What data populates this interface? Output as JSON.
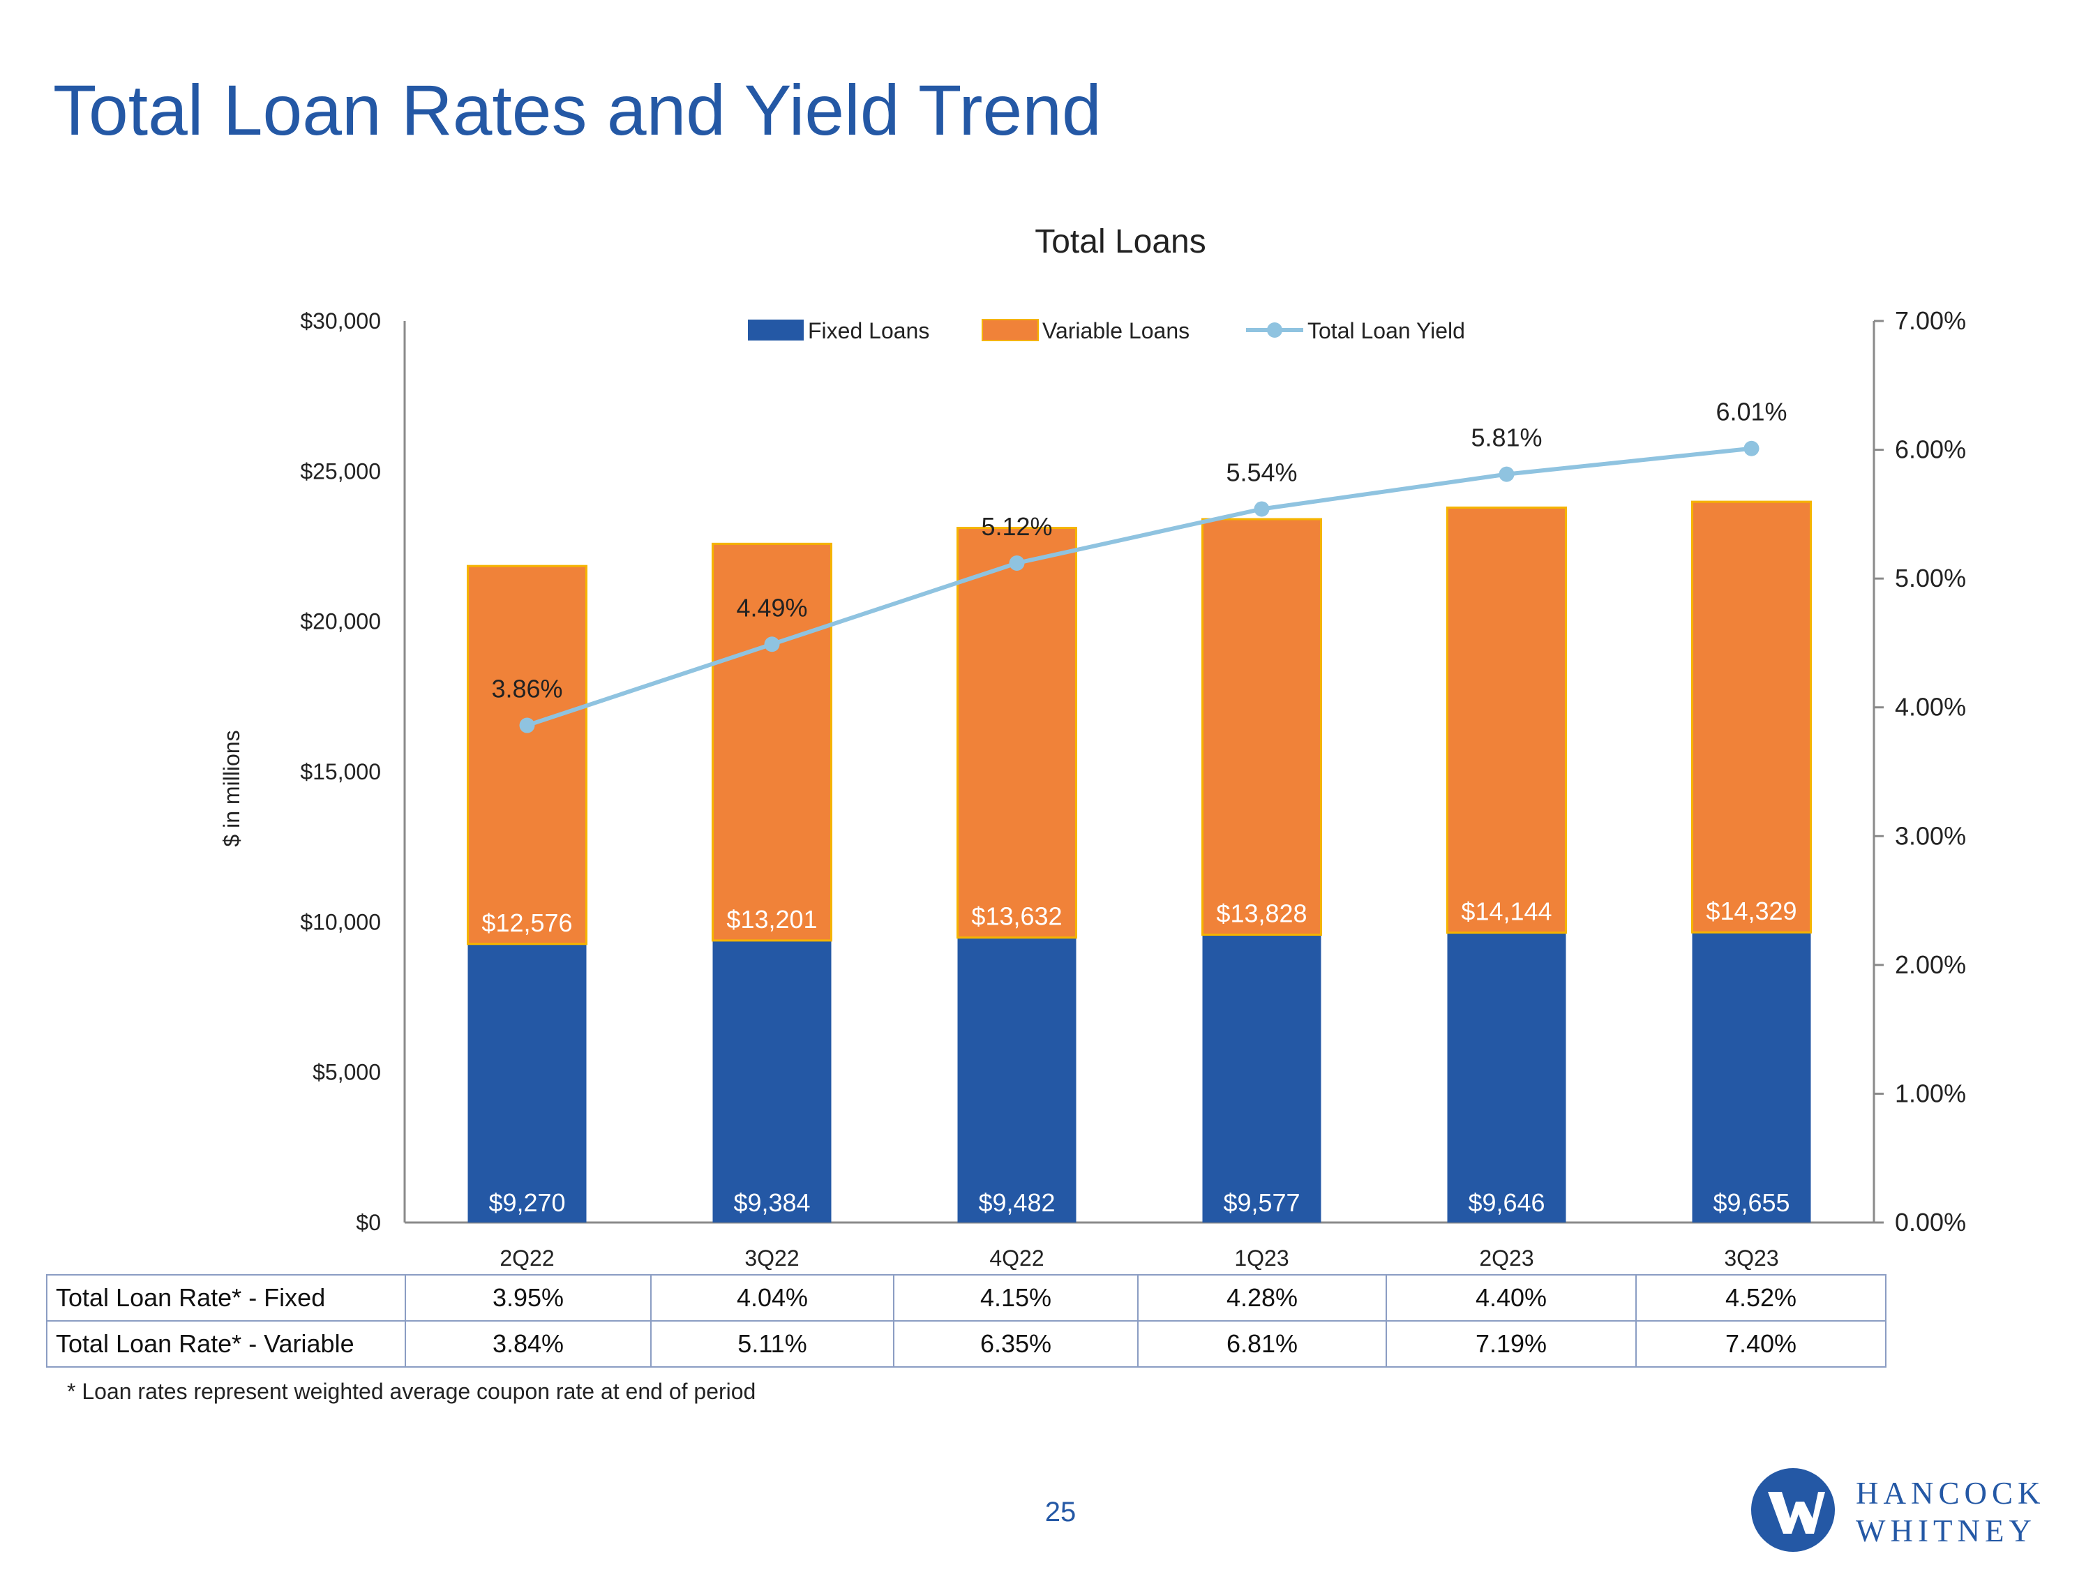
{
  "page": {
    "title": "Total Loan Rates and Yield Trend",
    "footnote": "* Loan rates represent weighted average coupon rate at end of period",
    "page_number": "25",
    "logo": {
      "line1": "HANCOCK",
      "line2": "WHITNEY"
    }
  },
  "colors": {
    "title": "#2458A5",
    "fixed": "#2458A5",
    "variable": "#F08239",
    "yield": "#8FC3E0",
    "axis": "#8A8A8A"
  },
  "chart_data": {
    "type": "bar",
    "stacked": true,
    "title": "Total Loans",
    "ylabel": "$ in millions",
    "ylim": [
      0,
      30000
    ],
    "y_ticks": [
      "$0",
      "$5,000",
      "$10,000",
      "$15,000",
      "$20,000",
      "$25,000",
      "$30,000"
    ],
    "y2lim": [
      0,
      7
    ],
    "y2_ticks": [
      "0.00%",
      "1.00%",
      "2.00%",
      "3.00%",
      "4.00%",
      "5.00%",
      "6.00%",
      "7.00%"
    ],
    "categories": [
      "2Q22",
      "3Q22",
      "4Q22",
      "1Q23",
      "2Q23",
      "3Q23"
    ],
    "series": [
      {
        "name": "Fixed Loans",
        "kind": "bar",
        "values": [
          9270,
          9384,
          9482,
          9577,
          9646,
          9655
        ],
        "labels": [
          "$9,270",
          "$9,384",
          "$9,482",
          "$9,577",
          "$9,646",
          "$9,655"
        ]
      },
      {
        "name": "Variable Loans",
        "kind": "bar",
        "values": [
          12576,
          13201,
          13632,
          13828,
          14144,
          14329
        ],
        "labels": [
          "$12,576",
          "$13,201",
          "$13,632",
          "$13,828",
          "$14,144",
          "$14,329"
        ]
      },
      {
        "name": "Total Loan Yield",
        "kind": "line",
        "axis": "right",
        "values": [
          3.86,
          4.49,
          5.12,
          5.54,
          5.81,
          6.01
        ],
        "labels": [
          "3.86%",
          "4.49%",
          "5.12%",
          "5.54%",
          "5.81%",
          "6.01%"
        ]
      }
    ],
    "legend": "top-center"
  },
  "table": {
    "rows": [
      {
        "label": "Total Loan Rate* - Fixed",
        "values": [
          "3.95%",
          "4.04%",
          "4.15%",
          "4.28%",
          "4.40%",
          "4.52%"
        ]
      },
      {
        "label": "Total Loan Rate* - Variable",
        "values": [
          "3.84%",
          "5.11%",
          "6.35%",
          "6.81%",
          "7.19%",
          "7.40%"
        ]
      }
    ]
  }
}
